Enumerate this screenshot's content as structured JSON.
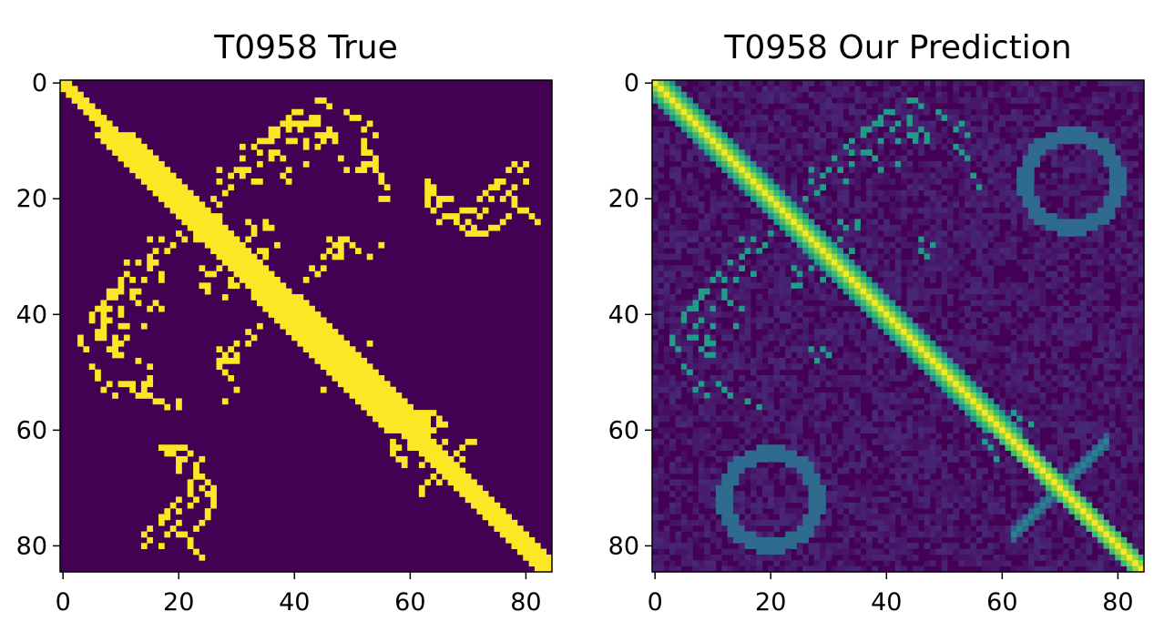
{
  "chart_data": [
    {
      "type": "heatmap",
      "title": "T0958 True",
      "xlabel": "",
      "ylabel": "",
      "size": 85,
      "xlim": [
        0,
        84
      ],
      "ylim": [
        84,
        0
      ],
      "x_ticks": [
        0,
        20,
        40,
        60,
        80
      ],
      "y_ticks": [
        0,
        20,
        40,
        60,
        80
      ],
      "colormap": "viridis",
      "low_color": "#440154",
      "high_color": "#fde725",
      "value_range": [
        0,
        1
      ],
      "grid": false,
      "diagonal_band_halfwidth": {
        "0-8": 1,
        "8-36": 3,
        "36-60": 4,
        "60-84": 2
      },
      "contacts": [
        [
          3,
          44
        ],
        [
          3,
          45
        ],
        [
          4,
          46
        ],
        [
          5,
          40
        ],
        [
          5,
          41
        ],
        [
          6,
          39
        ],
        [
          6,
          44
        ],
        [
          7,
          38
        ],
        [
          7,
          42
        ],
        [
          7,
          43
        ],
        [
          8,
          36
        ],
        [
          8,
          41
        ],
        [
          9,
          44
        ],
        [
          9,
          47
        ],
        [
          10,
          34
        ],
        [
          10,
          35
        ],
        [
          10,
          39
        ],
        [
          10,
          40
        ],
        [
          10,
          45
        ],
        [
          10,
          47
        ],
        [
          11,
          33
        ],
        [
          12,
          34
        ],
        [
          12,
          52
        ],
        [
          13,
          31
        ],
        [
          13,
          48
        ],
        [
          14,
          34
        ],
        [
          14,
          52
        ],
        [
          14,
          53
        ],
        [
          15,
          27
        ],
        [
          15,
          30
        ],
        [
          15,
          32
        ],
        [
          15,
          49
        ],
        [
          15,
          51
        ],
        [
          15,
          54
        ],
        [
          16,
          29
        ],
        [
          16,
          31
        ],
        [
          17,
          27
        ],
        [
          17,
          33
        ],
        [
          17,
          34
        ],
        [
          17,
          55
        ],
        [
          18,
          29
        ],
        [
          18,
          63
        ],
        [
          18,
          78
        ],
        [
          19,
          28
        ],
        [
          19,
          64
        ],
        [
          20,
          26
        ],
        [
          20,
          63
        ],
        [
          20,
          78
        ],
        [
          21,
          27
        ],
        [
          21,
          65
        ],
        [
          21,
          78
        ],
        [
          22,
          64
        ],
        [
          22,
          79
        ],
        [
          22,
          80
        ],
        [
          23,
          27
        ],
        [
          23,
          67
        ],
        [
          23,
          77
        ],
        [
          23,
          81
        ],
        [
          24,
          68
        ],
        [
          24,
          76
        ],
        [
          24,
          82
        ],
        [
          25,
          69
        ],
        [
          25,
          74
        ],
        [
          25,
          75
        ],
        [
          26,
          70
        ],
        [
          26,
          71
        ],
        [
          26,
          72
        ],
        [
          26,
          73
        ],
        [
          27,
          46
        ],
        [
          27,
          48
        ],
        [
          27,
          49
        ],
        [
          28,
          30
        ],
        [
          28,
          48
        ],
        [
          28,
          50
        ],
        [
          29,
          46
        ],
        [
          29,
          51
        ],
        [
          30,
          15
        ],
        [
          30,
          47
        ],
        [
          30,
          48
        ],
        [
          31,
          11
        ],
        [
          31,
          13
        ],
        [
          31,
          15
        ],
        [
          32,
          24
        ],
        [
          32,
          27
        ],
        [
          32,
          43
        ],
        [
          32,
          45
        ],
        [
          33,
          25
        ],
        [
          33,
          26
        ],
        [
          33,
          44
        ],
        [
          34,
          29
        ],
        [
          34,
          31
        ],
        [
          34,
          42
        ],
        [
          35,
          24
        ],
        [
          35,
          25
        ],
        [
          35,
          29
        ],
        [
          35,
          30
        ],
        [
          36,
          9
        ],
        [
          36,
          10
        ],
        [
          36,
          12
        ],
        [
          36,
          13
        ],
        [
          36,
          25
        ],
        [
          37,
          8
        ],
        [
          37,
          9
        ],
        [
          37,
          12
        ],
        [
          37,
          28
        ],
        [
          38,
          13
        ],
        [
          38,
          16
        ],
        [
          39,
          7
        ],
        [
          39,
          8
        ],
        [
          39,
          15
        ],
        [
          39,
          17
        ],
        [
          40,
          5
        ],
        [
          40,
          7
        ],
        [
          41,
          5
        ],
        [
          41,
          7
        ],
        [
          42,
          10
        ],
        [
          42,
          11
        ],
        [
          42,
          14
        ],
        [
          43,
          6
        ],
        [
          44,
          3
        ],
        [
          44,
          7
        ],
        [
          44,
          11
        ],
        [
          45,
          3
        ],
        [
          45,
          9
        ],
        [
          45,
          10
        ],
        [
          45,
          30
        ],
        [
          46,
          4
        ],
        [
          46,
          8
        ],
        [
          46,
          9
        ],
        [
          47,
          10
        ],
        [
          47,
          28
        ],
        [
          48,
          27
        ],
        [
          48,
          29
        ],
        [
          48,
          30
        ],
        [
          49,
          5
        ],
        [
          49,
          27
        ],
        [
          50,
          6
        ],
        [
          50,
          28
        ],
        [
          51,
          6
        ],
        [
          52,
          8
        ],
        [
          52,
          10
        ],
        [
          52,
          11
        ],
        [
          52,
          15
        ],
        [
          52,
          50
        ],
        [
          53,
          7
        ],
        [
          53,
          12
        ],
        [
          53,
          30
        ],
        [
          53,
          45
        ],
        [
          54,
          9
        ],
        [
          54,
          13
        ],
        [
          54,
          14
        ],
        [
          55,
          16
        ],
        [
          55,
          17
        ],
        [
          55,
          20
        ],
        [
          55,
          28
        ],
        [
          56,
          18
        ],
        [
          56,
          20
        ],
        [
          57,
          62
        ],
        [
          57,
          63
        ],
        [
          57,
          64
        ],
        [
          58,
          59
        ],
        [
          58,
          63
        ],
        [
          58,
          65
        ],
        [
          59,
          61
        ],
        [
          59,
          65
        ],
        [
          59,
          66
        ],
        [
          60,
          62
        ],
        [
          60,
          63
        ],
        [
          62,
          66
        ],
        [
          62,
          70
        ],
        [
          62,
          71
        ],
        [
          63,
          17
        ],
        [
          63,
          19
        ],
        [
          63,
          21
        ],
        [
          63,
          69
        ],
        [
          64,
          18
        ],
        [
          64,
          22
        ],
        [
          64,
          68
        ],
        [
          65,
          20
        ],
        [
          65,
          24
        ],
        [
          65,
          69
        ],
        [
          66,
          20
        ],
        [
          66,
          23
        ],
        [
          66,
          68
        ],
        [
          67,
          20
        ],
        [
          67,
          68
        ],
        [
          68,
          23
        ],
        [
          68,
          24
        ],
        [
          69,
          22
        ],
        [
          69,
          25
        ],
        [
          70,
          22
        ],
        [
          70,
          24
        ],
        [
          71,
          22
        ],
        [
          71,
          25
        ],
        [
          72,
          20
        ],
        [
          72,
          23
        ],
        [
          73,
          19
        ],
        [
          73,
          22
        ],
        [
          74,
          18
        ],
        [
          74,
          20
        ],
        [
          75,
          17
        ],
        [
          75,
          18
        ],
        [
          76,
          17
        ],
        [
          76,
          20
        ],
        [
          77,
          15
        ],
        [
          77,
          19
        ],
        [
          78,
          14
        ],
        [
          78,
          18
        ],
        [
          79,
          15
        ],
        [
          80,
          14
        ],
        [
          80,
          17
        ],
        [
          81,
          23
        ]
      ]
    },
    {
      "type": "heatmap",
      "title": "T0958 Our Prediction",
      "xlabel": "",
      "ylabel": "",
      "size": 85,
      "xlim": [
        0,
        84
      ],
      "ylim": [
        84,
        0
      ],
      "x_ticks": [
        0,
        20,
        40,
        60,
        80
      ],
      "y_ticks": [
        0,
        20,
        40,
        60,
        80
      ],
      "colormap": "viridis",
      "low_color": "#440154",
      "high_color": "#fde725",
      "value_range": [
        0,
        1
      ],
      "grid": false,
      "diagonal_band_halfwidth": {
        "0-20": 3,
        "20-60": 3,
        "60-84": 2
      },
      "ring_structures": [
        {
          "center": [
            17,
            72
          ],
          "radius": 8,
          "intensity": 0.35
        },
        {
          "center": [
            72,
            20
          ],
          "radius": 8,
          "intensity": 0.35
        }
      ],
      "cross_strands": [
        {
          "from": [
            62,
            78
          ],
          "to": [
            78,
            62
          ],
          "intensity": 0.45
        }
      ],
      "contacts": [
        [
          3,
          44
        ],
        [
          3,
          45
        ],
        [
          4,
          46
        ],
        [
          5,
          40
        ],
        [
          6,
          39
        ],
        [
          6,
          44
        ],
        [
          7,
          38
        ],
        [
          7,
          42
        ],
        [
          8,
          36
        ],
        [
          8,
          41
        ],
        [
          9,
          44
        ],
        [
          9,
          47
        ],
        [
          10,
          34
        ],
        [
          10,
          39
        ],
        [
          10,
          45
        ],
        [
          11,
          33
        ],
        [
          12,
          34
        ],
        [
          13,
          31
        ],
        [
          14,
          34
        ],
        [
          15,
          27
        ],
        [
          15,
          30
        ],
        [
          15,
          32
        ],
        [
          16,
          29
        ],
        [
          17,
          27
        ],
        [
          17,
          33
        ],
        [
          18,
          29
        ],
        [
          19,
          28
        ],
        [
          20,
          26
        ],
        [
          27,
          46
        ],
        [
          28,
          48
        ],
        [
          29,
          46
        ],
        [
          30,
          47
        ],
        [
          32,
          24
        ],
        [
          32,
          27
        ],
        [
          33,
          25
        ],
        [
          34,
          29
        ],
        [
          35,
          24
        ],
        [
          35,
          25
        ],
        [
          36,
          9
        ],
        [
          36,
          12
        ],
        [
          37,
          8
        ],
        [
          37,
          12
        ],
        [
          38,
          13
        ],
        [
          39,
          7
        ],
        [
          39,
          15
        ],
        [
          40,
          5
        ],
        [
          41,
          5
        ],
        [
          42,
          10
        ],
        [
          42,
          14
        ],
        [
          44,
          3
        ],
        [
          44,
          7
        ],
        [
          45,
          9
        ],
        [
          46,
          4
        ],
        [
          46,
          8
        ],
        [
          47,
          10
        ],
        [
          49,
          5
        ],
        [
          50,
          6
        ],
        [
          52,
          8
        ],
        [
          52,
          11
        ],
        [
          53,
          7
        ],
        [
          53,
          12
        ],
        [
          54,
          9
        ],
        [
          54,
          13
        ],
        [
          55,
          16
        ],
        [
          56,
          18
        ],
        [
          57,
          62
        ],
        [
          58,
          63
        ],
        [
          59,
          65
        ]
      ],
      "noise": 0.12
    }
  ]
}
